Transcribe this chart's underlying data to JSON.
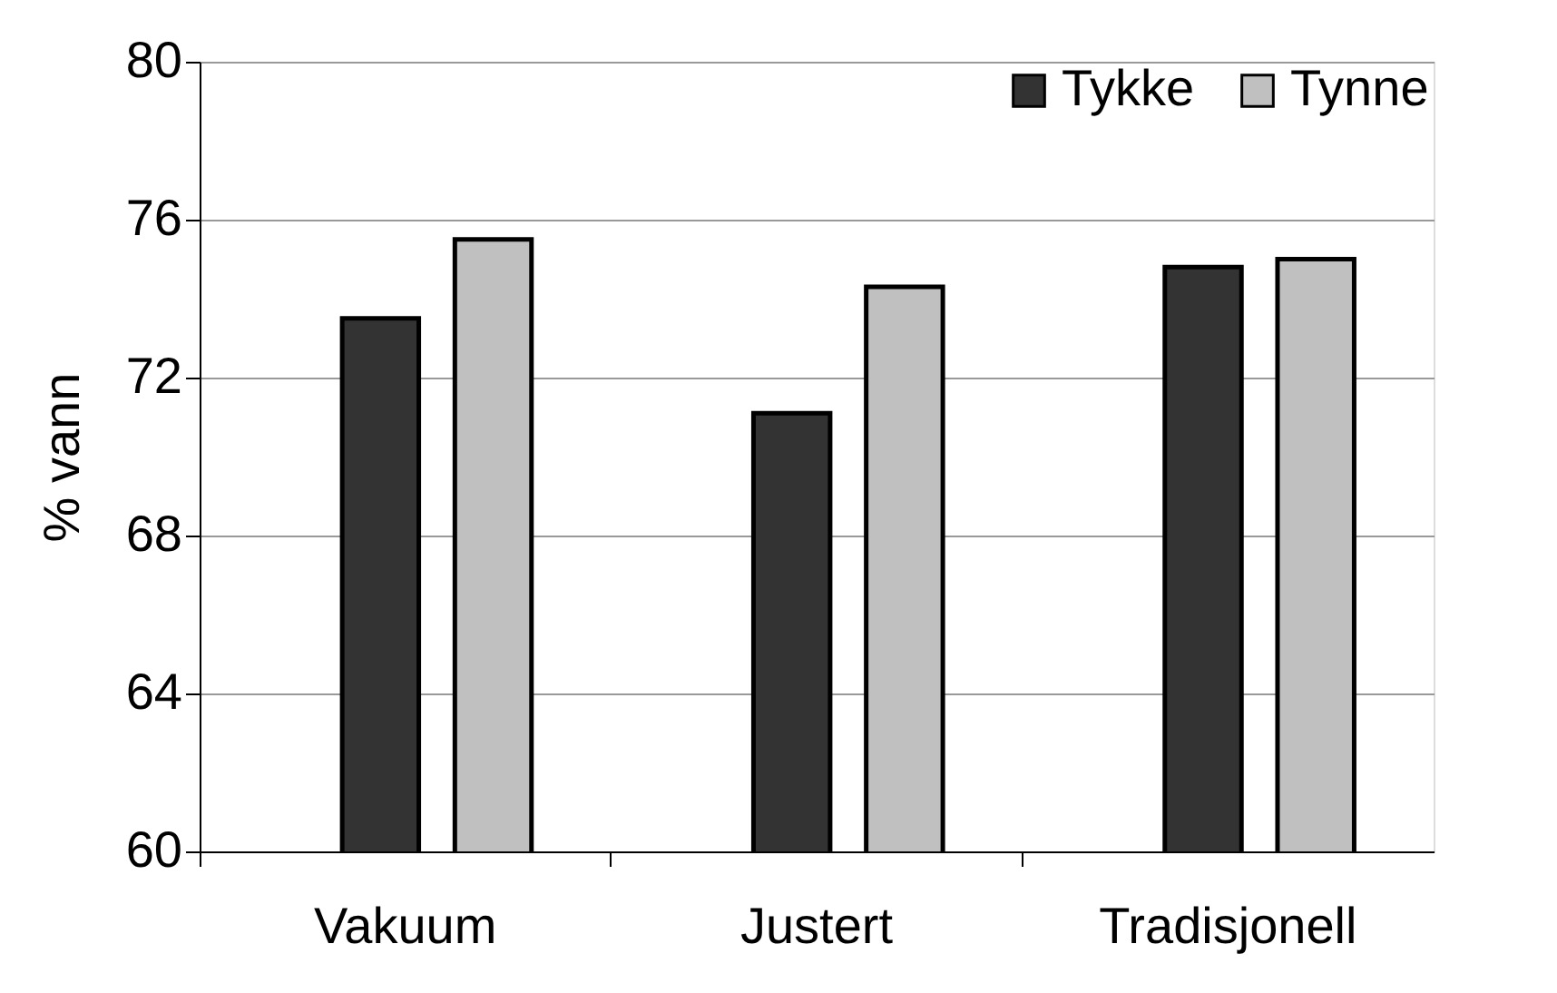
{
  "chart_data": {
    "type": "bar",
    "ylabel": "% vann",
    "categories": [
      "Vakuum",
      "Justert",
      "Tradisjonell"
    ],
    "series": [
      {
        "name": "Tykke",
        "color": "#333333",
        "values": [
          73.5,
          71.1,
          74.8
        ]
      },
      {
        "name": "Tynne",
        "color": "#c0c0c0",
        "values": [
          75.5,
          74.3,
          75.0
        ]
      }
    ],
    "ylim": [
      60,
      80
    ],
    "yticks": [
      60,
      64,
      68,
      72,
      76,
      80
    ],
    "grid": "y",
    "legend": "top right"
  }
}
